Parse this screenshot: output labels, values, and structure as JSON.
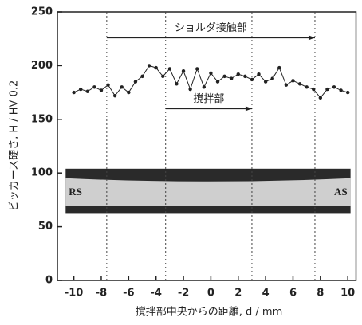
{
  "chart_data": {
    "type": "line",
    "x_label": "撹拌部中央からの距離, d / mm",
    "y_label": "ビッカース硬さ, H / HV 0.2",
    "x": [
      -10,
      -9.5,
      -9,
      -8.5,
      -8,
      -7.5,
      -7,
      -6.5,
      -6,
      -5.5,
      -5,
      -4.5,
      -4,
      -3.5,
      -3,
      -2.5,
      -2,
      -1.5,
      -1,
      -0.5,
      0,
      0.5,
      1,
      1.5,
      2,
      2.5,
      3,
      3.5,
      4,
      4.5,
      5,
      5.5,
      6,
      6.5,
      7,
      7.5,
      8,
      8.5,
      9,
      9.5,
      10
    ],
    "series": [
      {
        "color": "#222222",
        "values": [
          175,
          178,
          176,
          180,
          177,
          182,
          172,
          180,
          175,
          185,
          190,
          200,
          198,
          190,
          197,
          183,
          195,
          178,
          197,
          180,
          193,
          185,
          190,
          188,
          192,
          190,
          187,
          192,
          185,
          188,
          198,
          182,
          186,
          183,
          180,
          178,
          170,
          178,
          180,
          177,
          175
        ]
      }
    ],
    "xlim": [
      -11.2,
      10.6
    ],
    "ylim": [
      0,
      250
    ],
    "xticks": [
      -10,
      -8,
      -6,
      -4,
      -2,
      0,
      2,
      4,
      6,
      8,
      10
    ],
    "yticks": [
      0,
      50,
      100,
      150,
      200,
      250
    ],
    "vlines": [
      -7.6,
      -3.3,
      3,
      7.6
    ],
    "annotations": [
      {
        "text": "ショルダ接触部",
        "range": [
          -7.6,
          7.6
        ],
        "y": 226
      },
      {
        "text": "撹拌部",
        "range": [
          -3.3,
          3
        ],
        "y": 160
      }
    ],
    "inset_labels": [
      "RS",
      "AS"
    ]
  }
}
